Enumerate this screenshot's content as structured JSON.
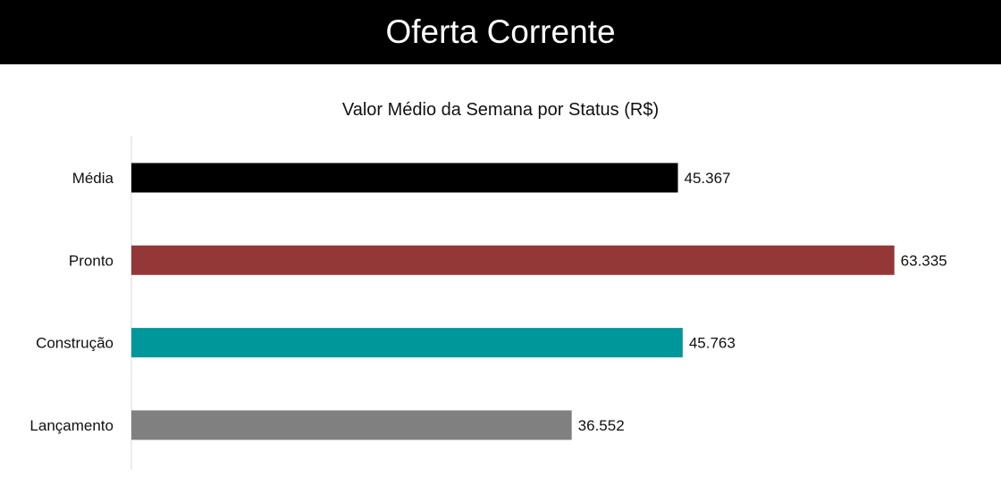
{
  "header": {
    "title": "Oferta Corrente"
  },
  "chart_data": {
    "type": "bar",
    "orientation": "horizontal",
    "title": "Valor Médio da Semana por Status (R$)",
    "xlabel": "",
    "ylabel": "",
    "categories": [
      "Média",
      "Pronto",
      "Construção",
      "Lançamento"
    ],
    "values": [
      45367,
      63335,
      45763,
      36552
    ],
    "value_labels": [
      "45.367",
      "63.335",
      "45.763",
      "36.552"
    ],
    "colors": [
      "#000000",
      "#943737",
      "#00979a",
      "#808080"
    ],
    "xlim": [
      0,
      71000
    ],
    "grid": false,
    "legend": "none"
  }
}
